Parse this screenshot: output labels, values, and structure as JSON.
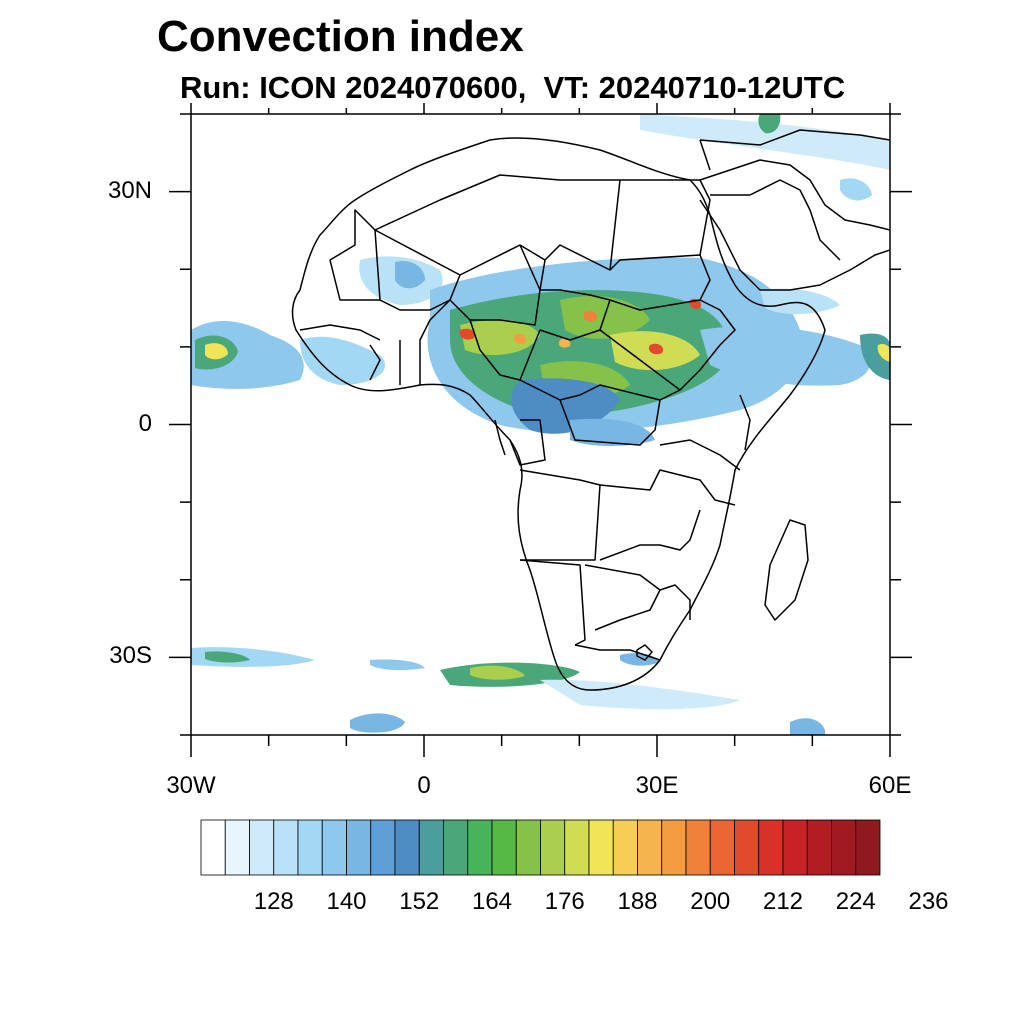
{
  "title": "Convection index",
  "subtitle": "Run: ICON 2024070600,  VT: 20240710-12UTC",
  "map": {
    "lon_range": [
      -30,
      60
    ],
    "lat_range": [
      -40,
      40
    ],
    "x_ticks": [
      {
        "lon": -30,
        "label": "30W"
      },
      {
        "lon": 0,
        "label": "0"
      },
      {
        "lon": 30,
        "label": "30E"
      },
      {
        "lon": 60,
        "label": "60E"
      }
    ],
    "y_ticks": [
      {
        "lat": 30,
        "label": "30N"
      },
      {
        "lat": 0,
        "label": "0"
      },
      {
        "lat": -30,
        "label": "30S"
      }
    ],
    "minor_tick_interval_deg": 10
  },
  "colorbar": {
    "labels": [
      "128",
      "140",
      "152",
      "164",
      "176",
      "188",
      "200",
      "212",
      "224",
      "236"
    ],
    "colors": [
      "#ffffff",
      "#e8f5fc",
      "#cfeaf9",
      "#b9e2f7",
      "#a2d8f3",
      "#8ec8ec",
      "#78b6e3",
      "#5f9fd6",
      "#4d8dc4",
      "#4a9e9e",
      "#4aa77a",
      "#47b35a",
      "#56b946",
      "#86c24a",
      "#aacf4e",
      "#d1dc55",
      "#f1e458",
      "#f7cd55",
      "#f6b44d",
      "#f49c42",
      "#f0813a",
      "#ea6532",
      "#e24a2c",
      "#d83228",
      "#c72326",
      "#b41c24",
      "#a01a22",
      "#8e1a1e"
    ]
  }
}
